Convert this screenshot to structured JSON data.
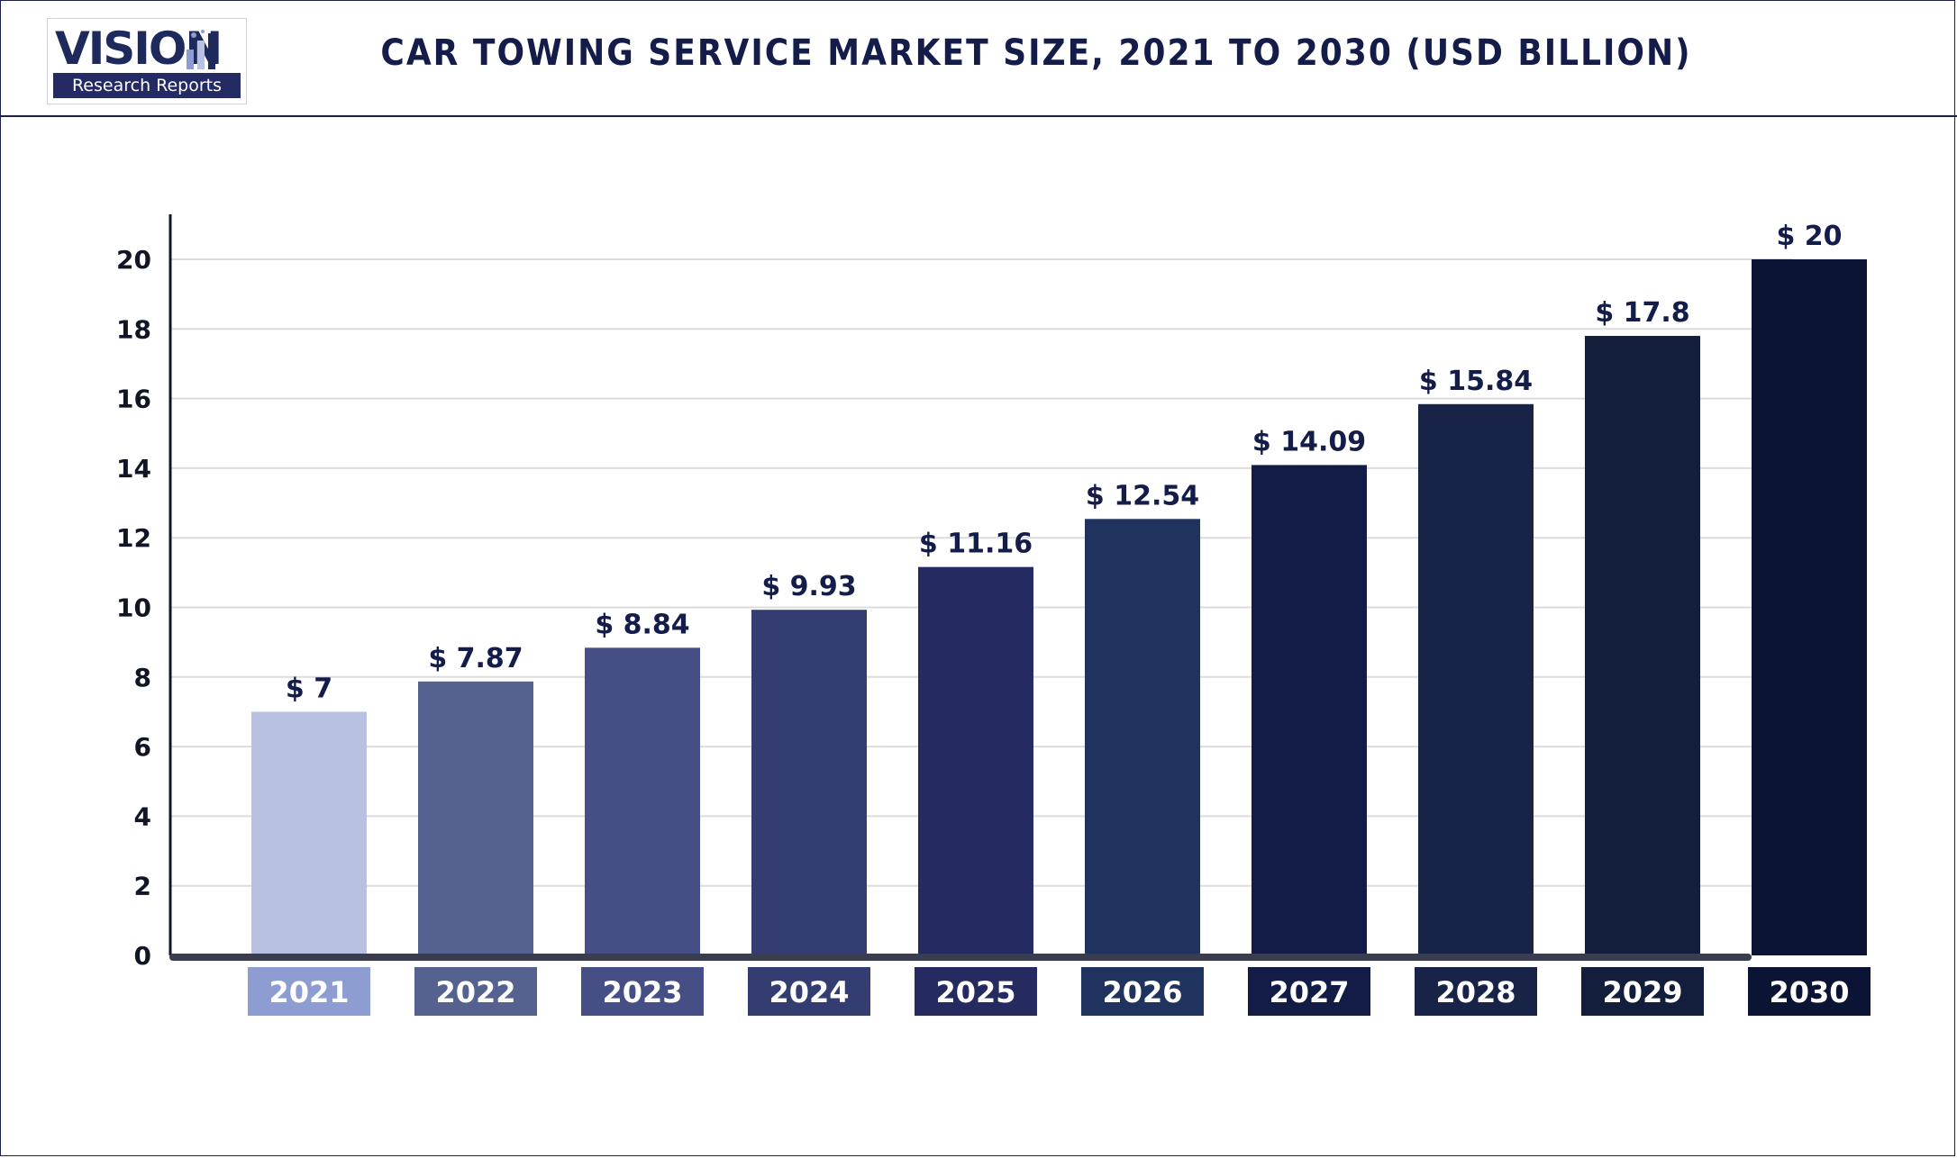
{
  "logo": {
    "word": "VISION",
    "subtitle": "Research Reports"
  },
  "chart_data": {
    "type": "bar",
    "title": "CAR TOWING SERVICE MARKET SIZE, 2021 TO 2030 (USD BILLION)",
    "xlabel": "",
    "ylabel": "",
    "categories": [
      "2021",
      "2022",
      "2023",
      "2024",
      "2025",
      "2026",
      "2027",
      "2028",
      "2029",
      "2030"
    ],
    "values": [
      7,
      7.87,
      8.84,
      9.93,
      11.16,
      12.54,
      14.09,
      15.84,
      17.8,
      20
    ],
    "value_labels": [
      "$ 7",
      "$ 7.87",
      "$ 8.84",
      "$ 9.93",
      "$ 11.16",
      "$ 12.54",
      "$ 14.09",
      "$ 15.84",
      "$ 17.8",
      "$ 20"
    ],
    "ylim": [
      0,
      20
    ],
    "yticks": [
      0,
      2,
      4,
      6,
      8,
      10,
      12,
      14,
      16,
      18,
      20
    ],
    "grid": true,
    "colors": [
      "#b8c1e1",
      "#55618e",
      "#454f85",
      "#333d72",
      "#252a61",
      "#1f335e",
      "#121c47",
      "#172447",
      "#131e3c",
      "#0b1434"
    ],
    "label_colors": [
      "#8e9dd1",
      "#55618e",
      "#454f85",
      "#333d72",
      "#252a61",
      "#1f335e",
      "#121c47",
      "#172447",
      "#131e3c",
      "#0b1434"
    ]
  }
}
